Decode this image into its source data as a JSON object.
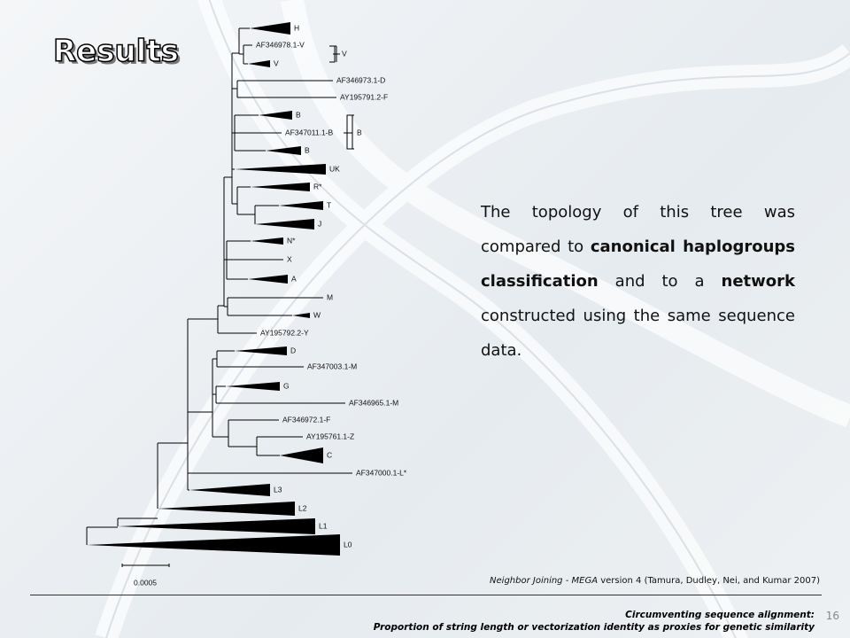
{
  "header": {
    "title": "Results"
  },
  "tree": {
    "leaves": [
      "H",
      "AF346978.1-V",
      "V",
      "AF346973.1-D",
      "AY195791.2-F",
      "B",
      "AF347011.1-B",
      "B",
      "UK",
      "R*",
      "T",
      "J",
      "N*",
      "X",
      "A",
      "M",
      "W",
      "AY195792.2-Y",
      "D",
      "AF347003.1-M",
      "G",
      "AF346965.1-M",
      "AF346972.1-F",
      "AY195761.1-Z",
      "C",
      "AF347000.1-L*",
      "L3",
      "L2",
      "L1",
      "L0"
    ],
    "brackets": [
      "V",
      "B"
    ],
    "scale": "0.0005"
  },
  "paragraph": [
    "The topology of this tree was compared to ",
    "canonical haplogroups classification",
    " and to a ",
    "network",
    " constructed using the same sequence data."
  ],
  "caption": [
    "Neighbor Joining - MEGA",
    " version 4 (Tamura, Dudley, Nei, and Kumar 2007)"
  ],
  "footer": {
    "lines": [
      "Circumventing sequence alignment:",
      "Proportion of string length or vectorization identity as proxies for genetic similarity"
    ],
    "page": "16"
  }
}
